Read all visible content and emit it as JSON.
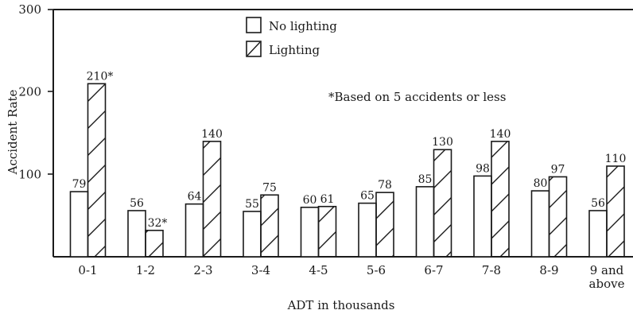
{
  "chart_data": {
    "type": "bar",
    "ylabel": "Accident Rate",
    "xlabel": "ADT in thousands",
    "ylim": [
      0,
      300
    ],
    "yticks": [
      100,
      200,
      300
    ],
    "categories": [
      "0-1",
      "1-2",
      "2-3",
      "3-4",
      "4-5",
      "5-6",
      "6-7",
      "7-8",
      "8-9",
      [
        "9 and",
        "above"
      ]
    ],
    "series": [
      {
        "name": "No lighting",
        "fill": "plain",
        "values": [
          79,
          56,
          64,
          55,
          60,
          65,
          85,
          98,
          80,
          56
        ],
        "labels": [
          "79",
          "56",
          "64",
          "55",
          "60",
          "65",
          "85",
          "98",
          "80",
          "56"
        ]
      },
      {
        "name": "Lighting",
        "fill": "hatched",
        "values": [
          210,
          32,
          140,
          75,
          61,
          78,
          130,
          140,
          97,
          110
        ],
        "labels": [
          "210*",
          "32*",
          "140",
          "75",
          "61",
          "78",
          "130",
          "140",
          "97",
          "110"
        ]
      }
    ],
    "annotation": "*Based on 5 accidents or less",
    "legend": "top-center",
    "grid": false
  },
  "colors": {
    "ink": "#1a1a1a",
    "background": "#ffffff"
  }
}
